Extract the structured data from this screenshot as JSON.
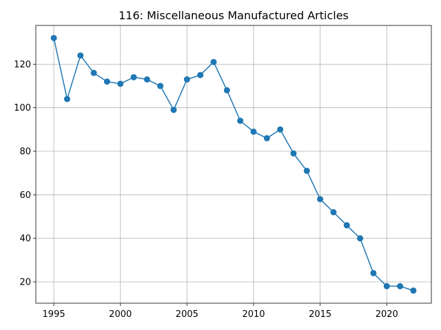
{
  "chart_data": {
    "type": "line",
    "title": "116: Miscellaneous Manufactured Articles",
    "xlabel": "",
    "ylabel": "",
    "xlim": [
      1993.65,
      2023.35
    ],
    "ylim": [
      10.2,
      137.8
    ],
    "xticks": [
      1995,
      2000,
      2005,
      2010,
      2015,
      2020
    ],
    "yticks": [
      20,
      40,
      60,
      80,
      100,
      120
    ],
    "grid": true,
    "color": "#1f77b4",
    "series": [
      {
        "x": [
          1995,
          1996,
          1997,
          1998,
          1999,
          2000,
          2001,
          2002,
          2003,
          2004,
          2005,
          2006,
          2007,
          2008,
          2009,
          2010,
          2011,
          2012,
          2013,
          2014,
          2015,
          2016,
          2017,
          2018,
          2019,
          2020,
          2021,
          2022
        ],
        "values": [
          132,
          104,
          124,
          116,
          112,
          111,
          114,
          113,
          110,
          99,
          113,
          115,
          121,
          108,
          94,
          89,
          86,
          90,
          79,
          71,
          58,
          52,
          46,
          40,
          24,
          18,
          18,
          16
        ]
      }
    ]
  }
}
